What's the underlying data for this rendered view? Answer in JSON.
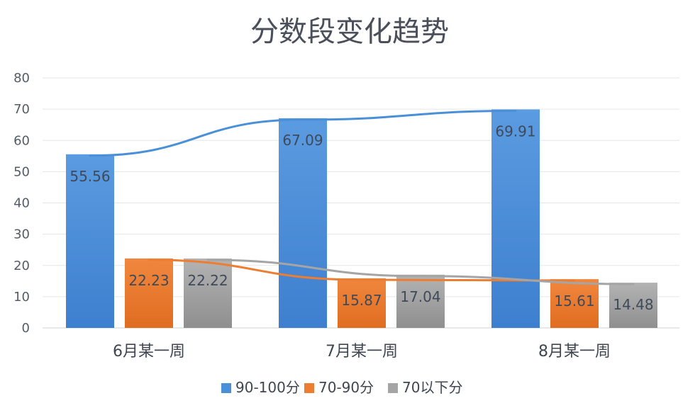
{
  "chart_data": {
    "type": "bar",
    "title": "分数段变化趋势",
    "categories": [
      "6月某一周",
      "7月某一周",
      "8月某一周"
    ],
    "series": [
      {
        "name": "90-100分",
        "values": [
          55.56,
          67.09,
          69.91
        ],
        "color": "#4a90d9"
      },
      {
        "name": "70-90分",
        "values": [
          22.23,
          15.87,
          15.61
        ],
        "color": "#ed7d31"
      },
      {
        "name": "70以下分",
        "values": [
          22.22,
          17.04,
          14.48
        ],
        "color": "#a5a5a5"
      }
    ],
    "trendlines": true,
    "ylim": [
      0,
      80
    ],
    "yticks": [
      0,
      10,
      20,
      30,
      40,
      50,
      60,
      70,
      80
    ],
    "grid": true,
    "legend_position": "bottom"
  }
}
